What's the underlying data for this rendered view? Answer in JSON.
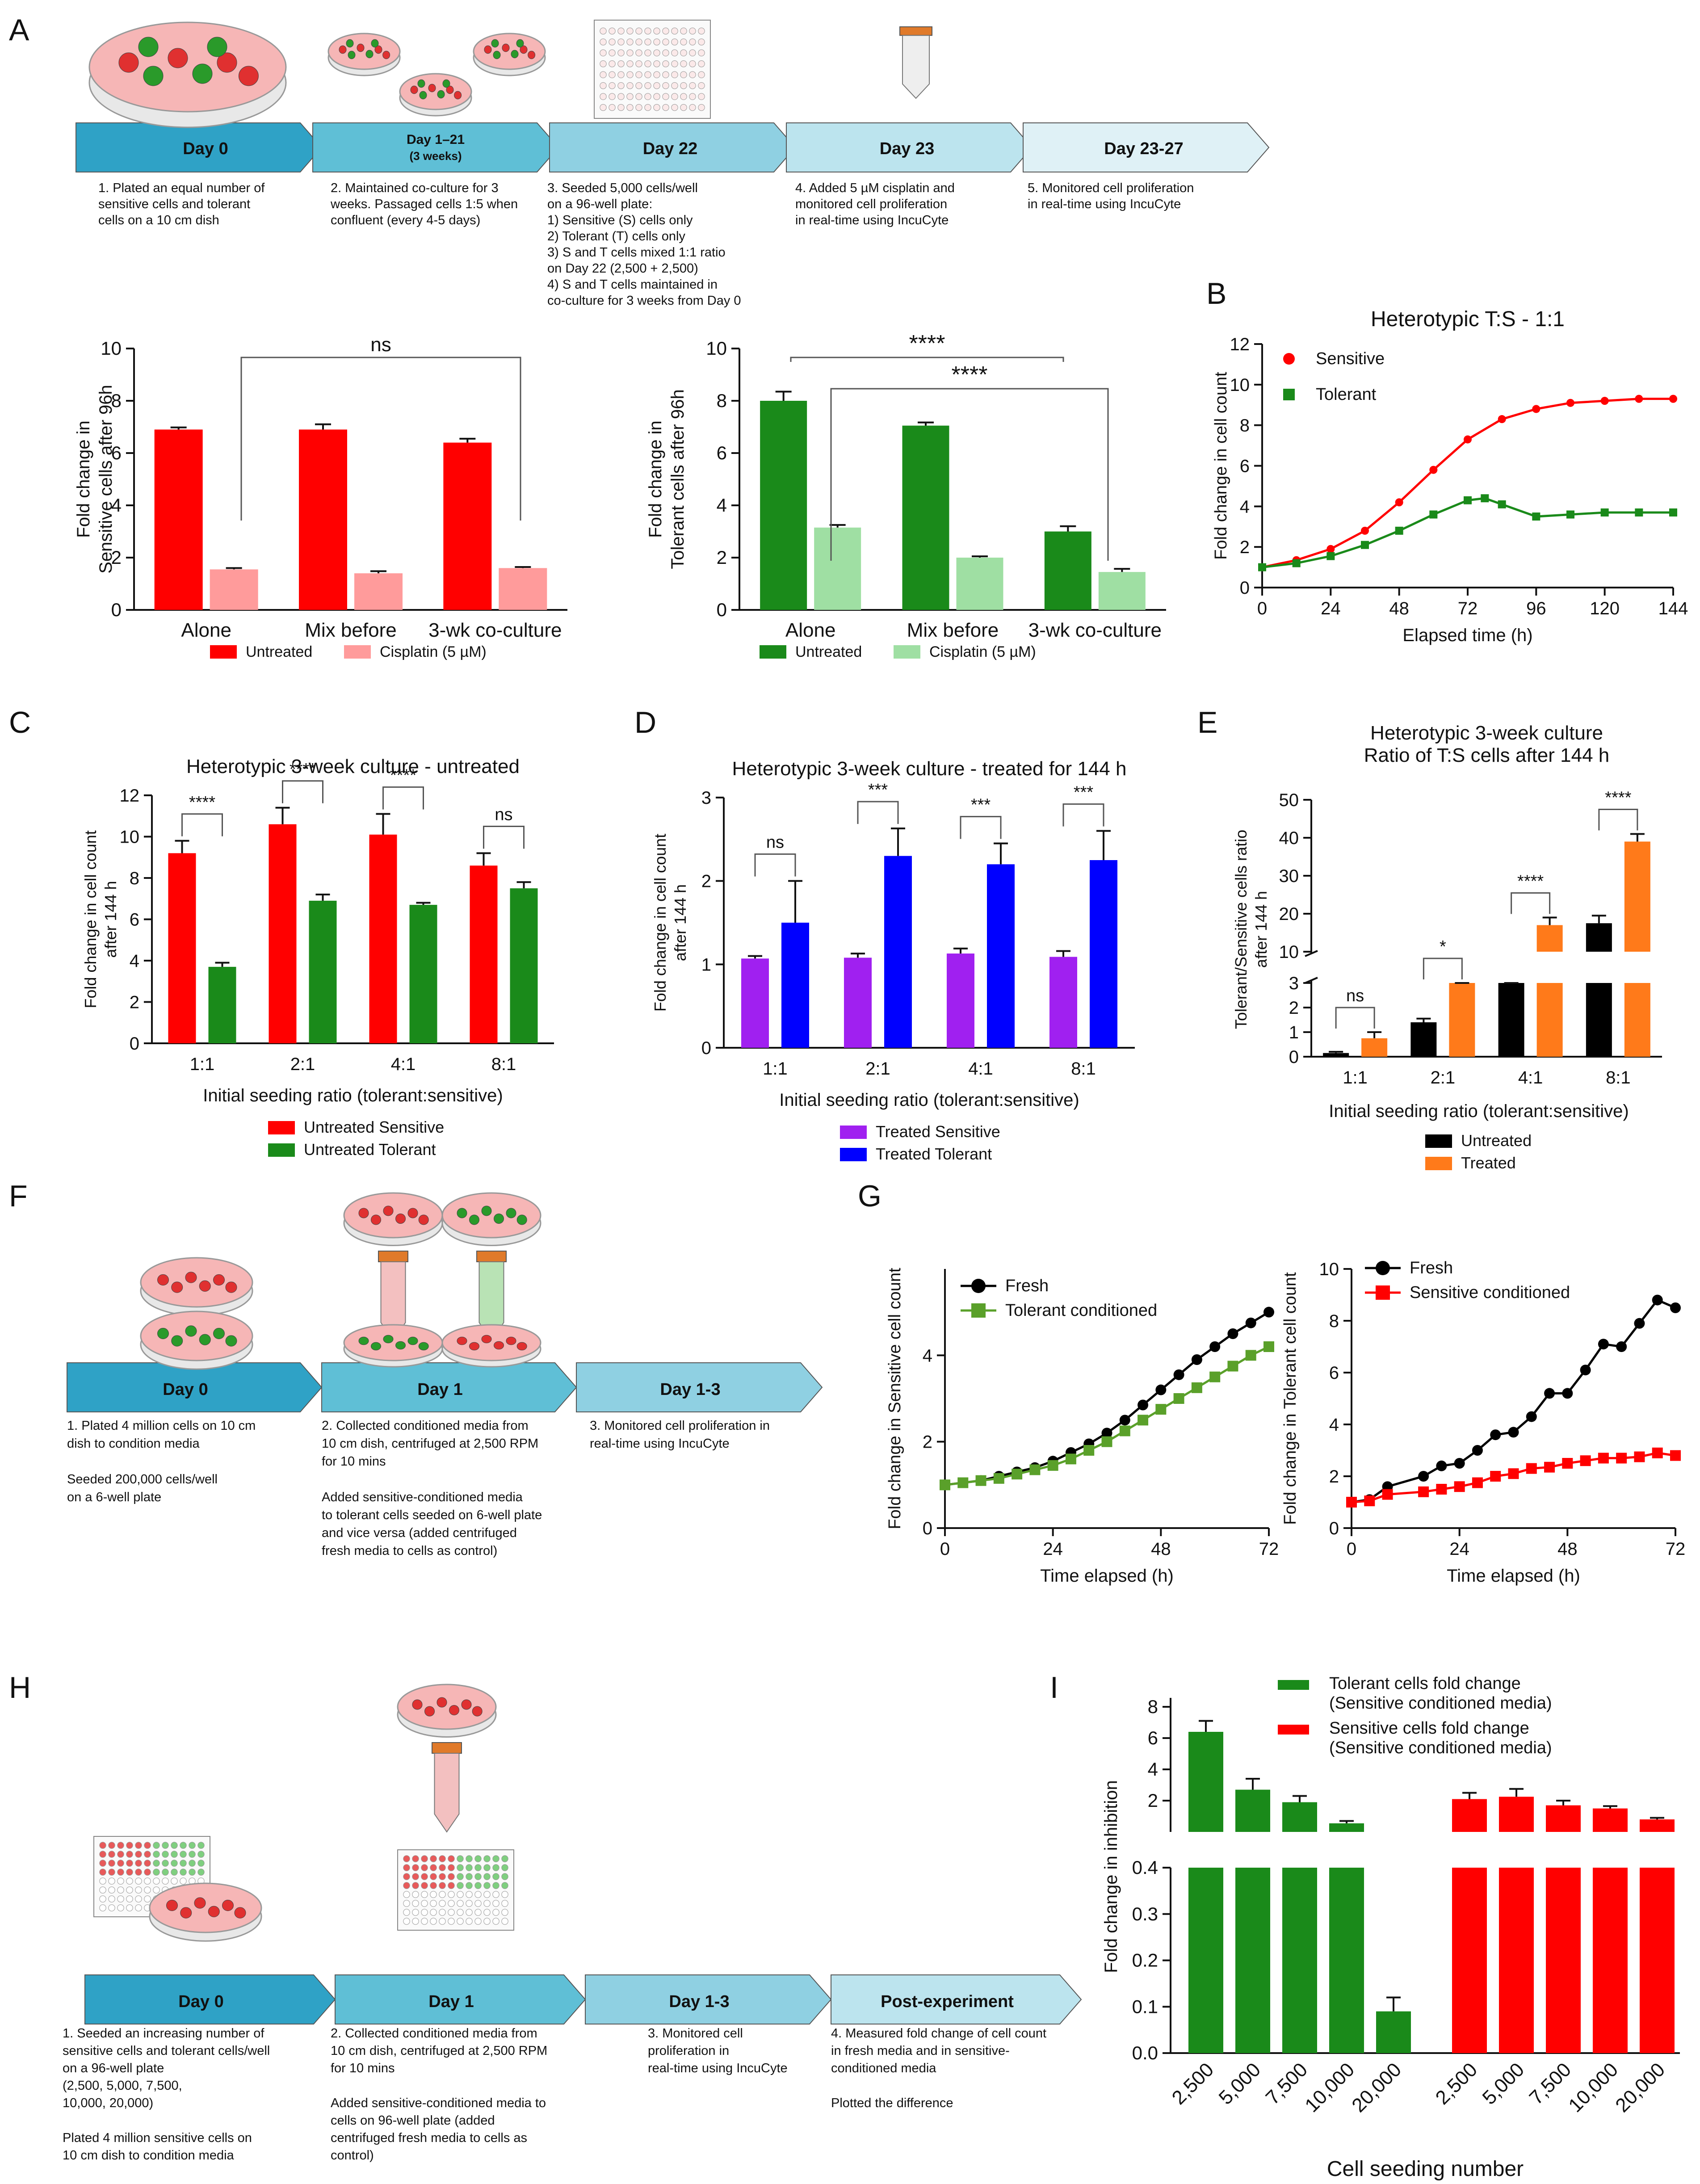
{
  "colors": {
    "red": "#ff0000",
    "pink": "#ff9b9b",
    "green": "#1a8a1a",
    "lightgreen": "#9fdfa3",
    "purple": "#a020f0",
    "blue": "#0000ff",
    "black": "#000000",
    "orange": "#ff7a1a",
    "arrow1": "#2fa2c6",
    "arrow2": "#5fbfd6",
    "arrow3": "#8fd0e2",
    "arrow4": "#bce4ee",
    "arrow5": "#dff1f6"
  },
  "panel_letters": [
    "A",
    "B",
    "C",
    "D",
    "E",
    "F",
    "G",
    "H",
    "I"
  ],
  "panelA": {
    "arrows": [
      "Day 0",
      "Day 1–21",
      "(3 weeks)",
      "Day 22",
      "Day 23",
      "Day 23-27"
    ],
    "steps": [
      [
        "1. Plated an equal number of",
        "sensitive cells and tolerant",
        "cells on a 10 cm dish"
      ],
      [
        "2. Maintained co-culture for  3",
        "weeks. Passaged cells 1:5 when",
        "confluent (every 4-5 days)"
      ],
      [
        "3. Seeded 5,000 cells/well",
        "on a 96-well plate:",
        "1) Sensitive (S) cells only",
        "2) Tolerant (T) cells only",
        "3) S and T cells mixed 1:1 ratio",
        "on Day 22 (2,500 + 2,500)",
        "4) S and T cells maintained in",
        "co-culture for 3 weeks from Day 0"
      ],
      [
        "4. Added 5 µM cisplatin and",
        "monitored cell proliferation",
        "in real-time using IncuCyte"
      ],
      [
        "5. Monitored cell proliferation",
        "in real-time using IncuCyte"
      ]
    ]
  },
  "panelF": {
    "arrows": [
      "Day 0",
      "Day 1",
      "Day 1-3"
    ],
    "steps": [
      [
        "1. Plated 4 million cells on 10 cm",
        "dish to condition media",
        "",
        "Seeded 200,000 cells/well",
        "on a 6-well plate"
      ],
      [
        "2. Collected conditioned media from",
        "10 cm dish, centrifuged at 2,500 RPM",
        "for 10 mins",
        "",
        "Added sensitive-conditioned media",
        "to tolerant cells seeded on 6-well plate",
        "and vice versa (added centrifuged",
        "fresh media to cells as control)"
      ],
      [
        "3. Monitored cell proliferation in",
        "real-time using IncuCyte"
      ]
    ]
  },
  "panelH": {
    "arrows": [
      "Day 0",
      "Day 1",
      "Day 1-3",
      "Post-experiment"
    ],
    "steps": [
      [
        "1. Seeded an increasing number of",
        "sensitive cells and tolerant cells/well",
        "on a 96-well plate",
        "(2,500, 5,000, 7,500,",
        "10,000, 20,000)",
        "",
        "Plated 4 million sensitive cells on",
        "10 cm dish to condition media"
      ],
      [
        "2. Collected conditioned media from",
        "10 cm dish, centrifuged at 2,500 RPM",
        "for 10 mins",
        "",
        "Added sensitive-conditioned media to",
        "cells on 96-well plate (added",
        "centrifuged fresh media to cells as",
        "control)"
      ],
      [
        "3. Monitored cell",
        "proliferation in",
        "real-time using IncuCyte"
      ],
      [
        "4. Measured fold change of cell count",
        "in fresh media and in sensitive-",
        "conditioned media",
        "",
        "Plotted the difference"
      ]
    ]
  },
  "chart_data": [
    {
      "id": "A1",
      "type": "bar",
      "categories": [
        "Alone",
        "Mix before",
        "3-wk co-culture"
      ],
      "series": [
        {
          "name": "Untreated",
          "values": [
            6.9,
            6.9,
            6.4
          ],
          "err": [
            0.08,
            0.2,
            0.15
          ]
        },
        {
          "name": "Cisplatin (5 µM)",
          "values": [
            1.55,
            1.4,
            1.6
          ],
          "err": [
            0.05,
            0.08,
            0.04
          ]
        }
      ],
      "ylabel": "Fold change in\nSensitive cells after 96h",
      "ylim": [
        0,
        10
      ],
      "yticks": [
        0,
        2,
        4,
        6,
        8,
        10
      ],
      "annotations": [
        "ns"
      ]
    },
    {
      "id": "A2",
      "type": "bar",
      "categories": [
        "Alone",
        "Mix before",
        "3-wk co-culture"
      ],
      "series": [
        {
          "name": "Untreated",
          "values": [
            8.0,
            7.05,
            3.0
          ],
          "err": [
            0.35,
            0.12,
            0.2
          ]
        },
        {
          "name": "Cisplatin (5 µM)",
          "values": [
            3.15,
            2.0,
            1.45
          ],
          "err": [
            0.1,
            0.05,
            0.12
          ]
        }
      ],
      "ylabel": "Fold change in\nTolerant cells after 96h",
      "ylim": [
        0,
        10
      ],
      "yticks": [
        0,
        2,
        4,
        6,
        8,
        10
      ],
      "annotations": [
        "****",
        "****"
      ]
    },
    {
      "id": "B",
      "type": "line",
      "title": "Heterotypic T:S - 1:1",
      "xlabel": "Elapsed time (h)",
      "ylabel": "Fold change in cell count",
      "xlim": [
        0,
        144
      ],
      "ylim": [
        0,
        12
      ],
      "xticks": [
        0,
        24,
        48,
        72,
        96,
        120,
        144
      ],
      "yticks": [
        0,
        2,
        4,
        6,
        8,
        10,
        12
      ],
      "series": [
        {
          "name": "Sensitive",
          "x": [
            0,
            12,
            24,
            36,
            48,
            60,
            72,
            84,
            96,
            108,
            120,
            132,
            144
          ],
          "y": [
            1.0,
            1.35,
            1.9,
            2.8,
            4.2,
            5.8,
            7.3,
            8.3,
            8.8,
            9.1,
            9.2,
            9.3,
            9.3
          ]
        },
        {
          "name": "Tolerant",
          "x": [
            0,
            12,
            24,
            36,
            48,
            60,
            72,
            78,
            84,
            96,
            108,
            120,
            132,
            144
          ],
          "y": [
            1.0,
            1.2,
            1.55,
            2.1,
            2.8,
            3.6,
            4.3,
            4.4,
            4.1,
            3.5,
            3.6,
            3.7,
            3.7,
            3.7
          ]
        }
      ]
    },
    {
      "id": "C",
      "type": "bar",
      "title": "Heterotypic 3-week culture - untreated",
      "xlabel": "Initial seeding ratio (tolerant:sensitive)",
      "ylabel": "Fold change in cell count\nafter 144 h",
      "categories": [
        "1:1",
        "2:1",
        "4:1",
        "8:1"
      ],
      "series": [
        {
          "name": "Untreated Sensitive",
          "values": [
            9.2,
            10.6,
            10.1,
            8.6
          ],
          "err": [
            0.6,
            0.8,
            1.0,
            0.6
          ]
        },
        {
          "name": "Untreated Tolerant",
          "values": [
            3.7,
            6.9,
            6.7,
            7.5
          ],
          "err": [
            0.2,
            0.3,
            0.1,
            0.3
          ]
        }
      ],
      "ylim": [
        0,
        12
      ],
      "yticks": [
        0,
        2,
        4,
        6,
        8,
        10,
        12
      ],
      "annotations": [
        "****",
        "****",
        "****",
        "ns"
      ]
    },
    {
      "id": "D",
      "type": "bar",
      "title": "Heterotypic 3-week culture - treated for 144 h",
      "xlabel": "Initial seeding ratio (tolerant:sensitive)",
      "ylabel": "Fold change in cell count\nafter 144 h",
      "categories": [
        "1:1",
        "2:1",
        "4:1",
        "8:1"
      ],
      "series": [
        {
          "name": "Treated Sensitive",
          "values": [
            1.07,
            1.08,
            1.13,
            1.09
          ],
          "err": [
            0.03,
            0.05,
            0.06,
            0.07
          ]
        },
        {
          "name": "Treated Tolerant",
          "values": [
            1.5,
            2.3,
            2.2,
            2.25
          ],
          "err": [
            0.5,
            0.33,
            0.25,
            0.35
          ]
        }
      ],
      "ylim": [
        0,
        3
      ],
      "yticks": [
        0,
        1,
        2,
        3
      ],
      "annotations": [
        "ns",
        "***",
        "***",
        "***"
      ]
    },
    {
      "id": "E",
      "type": "bar",
      "title": "Heterotypic 3-week culture",
      "subtitle": "Ratio of T:S cells after 144 h",
      "xlabel": "Initial seeding ratio (tolerant:sensitive)",
      "ylabel": "Tolerant/Sensitive cells ratio\nafter 144 h",
      "categories": [
        "1:1",
        "2:1",
        "4:1",
        "8:1"
      ],
      "series": [
        {
          "name": "Untreated",
          "values": [
            0.15,
            1.4,
            6.5,
            17.5
          ],
          "err": [
            0.05,
            0.15,
            1.0,
            2.0
          ]
        },
        {
          "name": "Treated",
          "values": [
            0.75,
            5.5,
            17.0,
            39.0
          ],
          "err": [
            0.25,
            0.8,
            2.0,
            2.0
          ]
        }
      ],
      "ylim": [
        0,
        50
      ],
      "yticks": [
        0,
        1,
        2,
        3,
        10,
        20,
        30,
        40,
        50
      ],
      "axis_break": [
        3,
        10
      ],
      "annotations": [
        "ns",
        "*",
        "****",
        "****"
      ]
    },
    {
      "id": "G1",
      "type": "line",
      "xlabel": "Time elapsed (h)",
      "ylabel": "Fold change in Sensitive cell count",
      "xlim": [
        0,
        72
      ],
      "ylim": [
        0,
        6
      ],
      "xticks": [
        0,
        24,
        48,
        72
      ],
      "yticks": [
        0,
        2,
        4
      ],
      "series": [
        {
          "name": "Fresh",
          "x": [
            0,
            4,
            8,
            12,
            16,
            20,
            24,
            28,
            32,
            36,
            40,
            44,
            48,
            52,
            56,
            60,
            64,
            68,
            72
          ],
          "y": [
            1.0,
            1.05,
            1.1,
            1.2,
            1.3,
            1.4,
            1.55,
            1.75,
            1.95,
            2.2,
            2.5,
            2.85,
            3.2,
            3.55,
            3.9,
            4.2,
            4.5,
            4.75,
            5.0
          ]
        },
        {
          "name": "Tolerant conditioned",
          "x": [
            0,
            4,
            8,
            12,
            16,
            20,
            24,
            28,
            32,
            36,
            40,
            44,
            48,
            52,
            56,
            60,
            64,
            68,
            72
          ],
          "y": [
            1.0,
            1.05,
            1.1,
            1.15,
            1.25,
            1.35,
            1.45,
            1.6,
            1.8,
            2.0,
            2.25,
            2.5,
            2.75,
            3.0,
            3.25,
            3.5,
            3.75,
            4.0,
            4.2
          ]
        }
      ]
    },
    {
      "id": "G2",
      "type": "line",
      "xlabel": "Time elapsed (h)",
      "ylabel": "Fold change in Tolerant cell count",
      "xlim": [
        0,
        72
      ],
      "ylim": [
        0,
        10
      ],
      "xticks": [
        0,
        24,
        48,
        72
      ],
      "yticks": [
        0,
        2,
        4,
        6,
        8,
        10
      ],
      "series": [
        {
          "name": "Fresh",
          "x": [
            0,
            4,
            8,
            16,
            20,
            24,
            28,
            32,
            36,
            40,
            44,
            48,
            52,
            56,
            60,
            64,
            68,
            72
          ],
          "y": [
            1.0,
            1.1,
            1.6,
            2.0,
            2.4,
            2.5,
            3.0,
            3.6,
            3.7,
            4.3,
            5.2,
            5.2,
            6.1,
            7.1,
            7.0,
            7.9,
            8.8,
            8.5
          ]
        },
        {
          "name": "Sensitive conditioned",
          "x": [
            0,
            4,
            8,
            16,
            20,
            24,
            28,
            32,
            36,
            40,
            44,
            48,
            52,
            56,
            60,
            64,
            68,
            72
          ],
          "y": [
            1.0,
            1.05,
            1.3,
            1.4,
            1.5,
            1.6,
            1.75,
            2.0,
            2.1,
            2.3,
            2.35,
            2.5,
            2.6,
            2.7,
            2.7,
            2.75,
            2.9,
            2.8
          ]
        }
      ]
    },
    {
      "id": "I",
      "type": "bar",
      "xlabel": "Cell seeding number",
      "ylabel": "Fold change in inhibition",
      "categories": [
        "2,500",
        "5,000",
        "7,500",
        "10,000",
        "20,000"
      ],
      "series": [
        {
          "name": "Tolerant cells fold change",
          "name2": "(Sensitive conditioned media)",
          "values": [
            6.4,
            2.7,
            1.9,
            0.55,
            0.09
          ],
          "err": [
            0.7,
            0.7,
            0.4,
            0.15,
            0.03
          ]
        },
        {
          "name": "Sensitive cells fold change",
          "name2": "(Sensitive conditioned media)",
          "values": [
            2.1,
            2.25,
            1.7,
            1.5,
            0.8
          ],
          "err": [
            0.4,
            0.5,
            0.3,
            0.15,
            0.1
          ]
        }
      ],
      "yticks_low": [
        0.0,
        0.1,
        0.2,
        0.3,
        0.4
      ],
      "yticks_high": [
        2,
        4,
        6,
        8
      ],
      "axis_break": [
        0.4,
        0.4
      ]
    }
  ]
}
